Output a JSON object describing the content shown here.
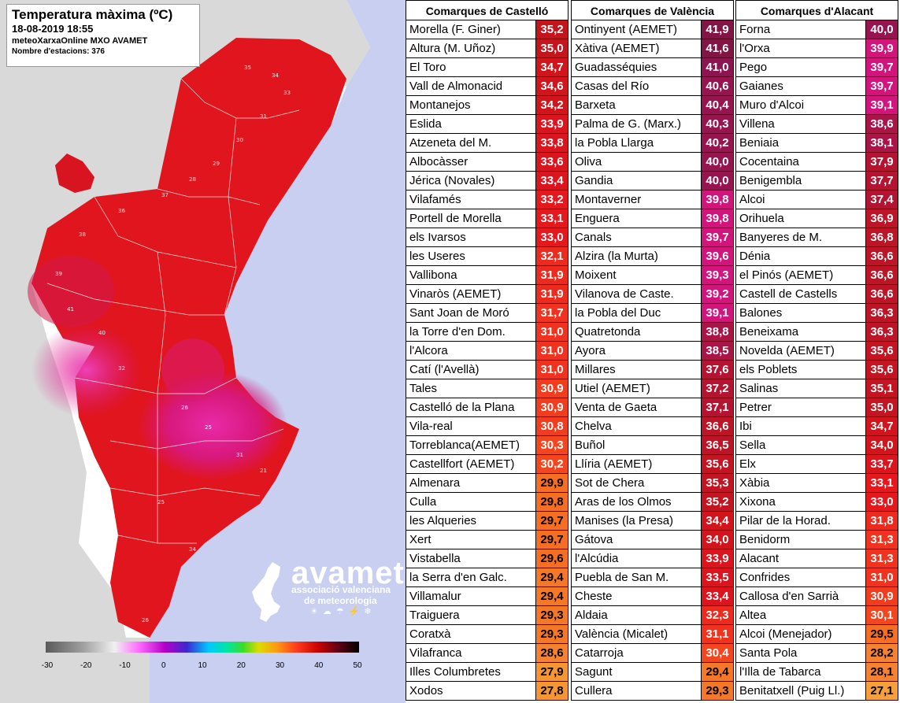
{
  "legend": {
    "title": "Temperatura màxima (ºC)",
    "datetime": "18-08-2019 18:55",
    "source": "meteoXarxaOnline MXO AVAMET",
    "stations_label": "Nombre d'estacions: 376"
  },
  "scale": {
    "ticks": [
      "-30",
      "-20",
      "-10",
      "0",
      "10",
      "20",
      "30",
      "40",
      "50"
    ]
  },
  "logo": {
    "name": "avamet",
    "line1": "associació valenciana",
    "line2": "de meteorologia"
  },
  "map_labels": [
    "35",
    "34",
    "33",
    "31",
    "30",
    "29",
    "28",
    "37",
    "36",
    "38",
    "39",
    "41",
    "40",
    "32",
    "26",
    "25",
    "31",
    "21",
    "25",
    "34",
    "26"
  ],
  "colors": {
    "sea": "#c8cff0",
    "land_outside": "#d9d9d9",
    "land_hot": "#e0151e",
    "land_very_hot": "#d0106a",
    "land_pink": "#e02aa0"
  },
  "tables": [
    {
      "header": "Comarques de Castelló",
      "rows": [
        {
          "name": "Morella (F. Giner)",
          "value": "35,2",
          "color": "#c4141c"
        },
        {
          "name": "Altura (M. Uñoz)",
          "value": "35,0",
          "color": "#c4141c"
        },
        {
          "name": "El Toro",
          "value": "34,7",
          "color": "#d2141c"
        },
        {
          "name": "Vall de Almonacid",
          "value": "34,6",
          "color": "#d2141c"
        },
        {
          "name": "Montanejos",
          "value": "34,2",
          "color": "#d2141c"
        },
        {
          "name": "Eslida",
          "value": "33,9",
          "color": "#dc141e"
        },
        {
          "name": "Atzeneta del M.",
          "value": "33,8",
          "color": "#dc141e"
        },
        {
          "name": "Albocàsser",
          "value": "33,6",
          "color": "#dc141e"
        },
        {
          "name": "Jérica (Novales)",
          "value": "33,4",
          "color": "#dc141e"
        },
        {
          "name": "Vilafamés",
          "value": "33,2",
          "color": "#e6181e"
        },
        {
          "name": "Portell de Morella",
          "value": "33,1",
          "color": "#e6181e"
        },
        {
          "name": "els Ivarsos",
          "value": "33,0",
          "color": "#e6181e"
        },
        {
          "name": "les Useres",
          "value": "32,1",
          "color": "#ec2a1e"
        },
        {
          "name": "Vallibona",
          "value": "31,9",
          "color": "#ec2a1e"
        },
        {
          "name": "Vinaròs (AEMET)",
          "value": "31,9",
          "color": "#ec2a1e"
        },
        {
          "name": "Sant Joan de Moró",
          "value": "31,7",
          "color": "#f0321e"
        },
        {
          "name": "la Torre d'en Dom.",
          "value": "31,0",
          "color": "#f0321e"
        },
        {
          "name": "l'Alcora",
          "value": "31,0",
          "color": "#f0321e"
        },
        {
          "name": "Catí (l'Avellà)",
          "value": "31,0",
          "color": "#f0321e"
        },
        {
          "name": "Tales",
          "value": "30,9",
          "color": "#f23c1e"
        },
        {
          "name": "Castelló de la Plana",
          "value": "30,9",
          "color": "#f23c1e"
        },
        {
          "name": "Vila-real",
          "value": "30,8",
          "color": "#f23c1e"
        },
        {
          "name": "Torreblanca(AEMET)",
          "value": "30,3",
          "color": "#f4461e"
        },
        {
          "name": "Castellfort (AEMET)",
          "value": "30,2",
          "color": "#f4461e"
        },
        {
          "name": "Almenara",
          "value": "29,9",
          "color": "#f56e23"
        },
        {
          "name": "Culla",
          "value": "29,8",
          "color": "#f56e23"
        },
        {
          "name": "les Alqueries",
          "value": "29,7",
          "color": "#f56e23"
        },
        {
          "name": "Xert",
          "value": "29,7",
          "color": "#f56e23"
        },
        {
          "name": "Vistabella",
          "value": "29,6",
          "color": "#f56e23"
        },
        {
          "name": "la Serra d'en Galc.",
          "value": "29,4",
          "color": "#f57828"
        },
        {
          "name": "Villamalur",
          "value": "29,4",
          "color": "#f57828"
        },
        {
          "name": "Traiguera",
          "value": "29,3",
          "color": "#f57828"
        },
        {
          "name": "Coratxà",
          "value": "29,3",
          "color": "#f57828"
        },
        {
          "name": "Vilafranca",
          "value": "28,6",
          "color": "#f58232"
        },
        {
          "name": "Illes Columbretes",
          "value": "27,9",
          "color": "#f59632"
        },
        {
          "name": "Xodos",
          "value": "27,8",
          "color": "#f59632"
        }
      ]
    },
    {
      "header": "Comarques de València",
      "rows": [
        {
          "name": "Ontinyent (AEMET)",
          "value": "41,9",
          "color": "#821446"
        },
        {
          "name": "Xàtiva (AEMET)",
          "value": "41,6",
          "color": "#821446"
        },
        {
          "name": "Guadasséquies",
          "value": "41,0",
          "color": "#8c1450"
        },
        {
          "name": "Casas del Río",
          "value": "40,6",
          "color": "#961450"
        },
        {
          "name": "Barxeta",
          "value": "40,4",
          "color": "#961450"
        },
        {
          "name": "Palma de G. (Marx.)",
          "value": "40,3",
          "color": "#961450"
        },
        {
          "name": "la Pobla Llarga",
          "value": "40,2",
          "color": "#961450"
        },
        {
          "name": "Oliva",
          "value": "40,0",
          "color": "#961450"
        },
        {
          "name": "Gandia",
          "value": "40,0",
          "color": "#961450"
        },
        {
          "name": "Montaverner",
          "value": "39,8",
          "color": "#d2147d"
        },
        {
          "name": "Enguera",
          "value": "39,8",
          "color": "#d2147d"
        },
        {
          "name": "Canals",
          "value": "39,7",
          "color": "#d2147d"
        },
        {
          "name": "Alzira (la Murta)",
          "value": "39,6",
          "color": "#d2147d"
        },
        {
          "name": "Moixent",
          "value": "39,3",
          "color": "#d2147d"
        },
        {
          "name": "Vilanova de Caste.",
          "value": "39,2",
          "color": "#d2147d"
        },
        {
          "name": "la Pobla del Duc",
          "value": "39,1",
          "color": "#d2147d"
        },
        {
          "name": "Quatretonda",
          "value": "38,8",
          "color": "#aa1446"
        },
        {
          "name": "Ayora",
          "value": "38,5",
          "color": "#aa1446"
        },
        {
          "name": "Millares",
          "value": "37,6",
          "color": "#b41432"
        },
        {
          "name": "Utiel (AEMET)",
          "value": "37,2",
          "color": "#b41432"
        },
        {
          "name": "Venta de Gaeta",
          "value": "37,1",
          "color": "#b41432"
        },
        {
          "name": "Chelva",
          "value": "36,6",
          "color": "#be1428"
        },
        {
          "name": "Buñol",
          "value": "36,5",
          "color": "#be1428"
        },
        {
          "name": "Llíria (AEMET)",
          "value": "35,6",
          "color": "#c41422"
        },
        {
          "name": "Sot de Chera",
          "value": "35,3",
          "color": "#c41422"
        },
        {
          "name": "Aras de los Olmos",
          "value": "35,2",
          "color": "#c41422"
        },
        {
          "name": "Manises (la Presa)",
          "value": "34,4",
          "color": "#d2141c"
        },
        {
          "name": "Gátova",
          "value": "34,0",
          "color": "#d2141c"
        },
        {
          "name": "l'Alcúdia",
          "value": "33,9",
          "color": "#dc141e"
        },
        {
          "name": "Puebla de San M.",
          "value": "33,5",
          "color": "#dc141e"
        },
        {
          "name": "Cheste",
          "value": "33,4",
          "color": "#dc141e"
        },
        {
          "name": "Aldaia",
          "value": "32,3",
          "color": "#ec2a1e"
        },
        {
          "name": "València (Micalet)",
          "value": "31,1",
          "color": "#f0321e"
        },
        {
          "name": "Catarroja",
          "value": "30,4",
          "color": "#f4461e"
        },
        {
          "name": "Sagunt",
          "value": "29,4",
          "color": "#f57828"
        },
        {
          "name": "Cullera",
          "value": "29,3",
          "color": "#f57828"
        }
      ]
    },
    {
      "header": "Comarques d'Alacant",
      "rows": [
        {
          "name": "Forna",
          "value": "40,0",
          "color": "#961450"
        },
        {
          "name": "l'Orxa",
          "value": "39,9",
          "color": "#d2147d"
        },
        {
          "name": "Pego",
          "value": "39,7",
          "color": "#d2147d"
        },
        {
          "name": "Gaianes",
          "value": "39,7",
          "color": "#d2147d"
        },
        {
          "name": "Muro d'Alcoi",
          "value": "39,1",
          "color": "#d2147d"
        },
        {
          "name": "Villena",
          "value": "38,6",
          "color": "#aa1446"
        },
        {
          "name": "Beniaia",
          "value": "38,1",
          "color": "#aa1446"
        },
        {
          "name": "Cocentaina",
          "value": "37,9",
          "color": "#b41432"
        },
        {
          "name": "Benigembla",
          "value": "37,7",
          "color": "#b41432"
        },
        {
          "name": "Alcoi",
          "value": "37,4",
          "color": "#b41432"
        },
        {
          "name": "Orihuela",
          "value": "36,9",
          "color": "#be1428"
        },
        {
          "name": "Banyeres de M.",
          "value": "36,8",
          "color": "#be1428"
        },
        {
          "name": "Dénia",
          "value": "36,6",
          "color": "#be1428"
        },
        {
          "name": "el Pinós (AEMET)",
          "value": "36,6",
          "color": "#be1428"
        },
        {
          "name": "Castell de Castells",
          "value": "36,6",
          "color": "#be1428"
        },
        {
          "name": "Balones",
          "value": "36,3",
          "color": "#be1428"
        },
        {
          "name": "Beneixama",
          "value": "36,3",
          "color": "#be1428"
        },
        {
          "name": "Novelda (AEMET)",
          "value": "35,6",
          "color": "#c41422"
        },
        {
          "name": "els Poblets",
          "value": "35,6",
          "color": "#c41422"
        },
        {
          "name": "Salinas",
          "value": "35,1",
          "color": "#c41422"
        },
        {
          "name": "Petrer",
          "value": "35,0",
          "color": "#c41422"
        },
        {
          "name": "Ibi",
          "value": "34,7",
          "color": "#d2141c"
        },
        {
          "name": "Sella",
          "value": "34,0",
          "color": "#d2141c"
        },
        {
          "name": "Elx",
          "value": "33,7",
          "color": "#dc141e"
        },
        {
          "name": "Xàbia",
          "value": "33,1",
          "color": "#e6181e"
        },
        {
          "name": "Xixona",
          "value": "33,0",
          "color": "#e6181e"
        },
        {
          "name": "Pilar de la Horad.",
          "value": "31,8",
          "color": "#ec2a1e"
        },
        {
          "name": "Benidorm",
          "value": "31,3",
          "color": "#f0321e"
        },
        {
          "name": "Alacant",
          "value": "31,3",
          "color": "#f0321e"
        },
        {
          "name": "Confrides",
          "value": "31,0",
          "color": "#f0321e"
        },
        {
          "name": "Callosa d'en Sarrià",
          "value": "30,9",
          "color": "#f23c1e"
        },
        {
          "name": "Altea",
          "value": "30,1",
          "color": "#f4461e"
        },
        {
          "name": "Alcoi (Menejador)",
          "value": "29,5",
          "color": "#f56e23"
        },
        {
          "name": "Santa Pola",
          "value": "28,2",
          "color": "#f58232"
        },
        {
          "name": "l'Illa de Tabarca",
          "value": "28,1",
          "color": "#f58232"
        },
        {
          "name": "Benitatxell (Puig Ll.)",
          "value": "27,1",
          "color": "#f5a03c"
        }
      ]
    }
  ]
}
